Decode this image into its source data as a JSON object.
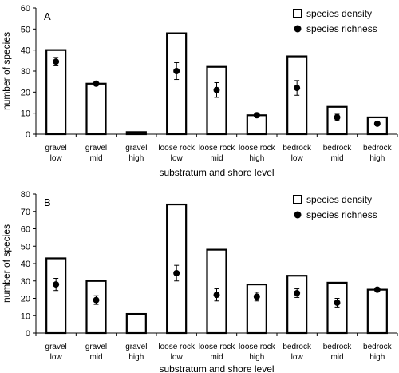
{
  "chart_data": [
    {
      "panel_label": "A",
      "type": "bar",
      "categories": [
        [
          "gravel",
          "low"
        ],
        [
          "gravel",
          "mid"
        ],
        [
          "gravel",
          "high"
        ],
        [
          "loose rock",
          "low"
        ],
        [
          "loose rock",
          "mid"
        ],
        [
          "loose rock",
          "high"
        ],
        [
          "bedrock",
          "low"
        ],
        [
          "bedrock",
          "mid"
        ],
        [
          "bedrock",
          "high"
        ]
      ],
      "series": [
        {
          "name": "species density",
          "kind": "bar",
          "values": [
            40,
            24,
            1,
            48,
            32,
            9,
            37,
            13,
            8
          ]
        },
        {
          "name": "species richness",
          "kind": "point",
          "values": [
            34.5,
            24,
            null,
            30,
            21,
            9,
            22,
            8,
            5
          ],
          "error": [
            2,
            0,
            null,
            4,
            3.5,
            0,
            3.5,
            1.5,
            0
          ]
        }
      ],
      "xlabel": "substratum  and  shore level",
      "ylabel": "number of species",
      "ylim": [
        0,
        60
      ],
      "yticks": [
        0,
        10,
        20,
        30,
        40,
        50,
        60
      ],
      "grid": false,
      "legend_position": "top-right"
    },
    {
      "panel_label": "B",
      "type": "bar",
      "categories": [
        [
          "gravel",
          "low"
        ],
        [
          "gravel",
          "mid"
        ],
        [
          "gravel",
          "high"
        ],
        [
          "loose rock",
          "low"
        ],
        [
          "loose rock",
          "mid"
        ],
        [
          "loose rock",
          "high"
        ],
        [
          "bedrock",
          "low"
        ],
        [
          "bedrock",
          "mid"
        ],
        [
          "bedrock",
          "high"
        ]
      ],
      "series": [
        {
          "name": "species density",
          "kind": "bar",
          "values": [
            43,
            30,
            11,
            74,
            48,
            28,
            33,
            29,
            25
          ]
        },
        {
          "name": "species richness",
          "kind": "point",
          "values": [
            28,
            19,
            null,
            34.5,
            22,
            21,
            23,
            17.5,
            25
          ],
          "error": [
            3.5,
            2.5,
            null,
            4.5,
            3.5,
            2.5,
            2.5,
            2.5,
            0
          ]
        }
      ],
      "xlabel": "substratum  and  shore level",
      "ylabel": "number of species",
      "ylim": [
        0,
        80
      ],
      "yticks": [
        0,
        10,
        20,
        30,
        40,
        50,
        60,
        70,
        80
      ],
      "grid": false,
      "legend_position": "top-right"
    }
  ]
}
